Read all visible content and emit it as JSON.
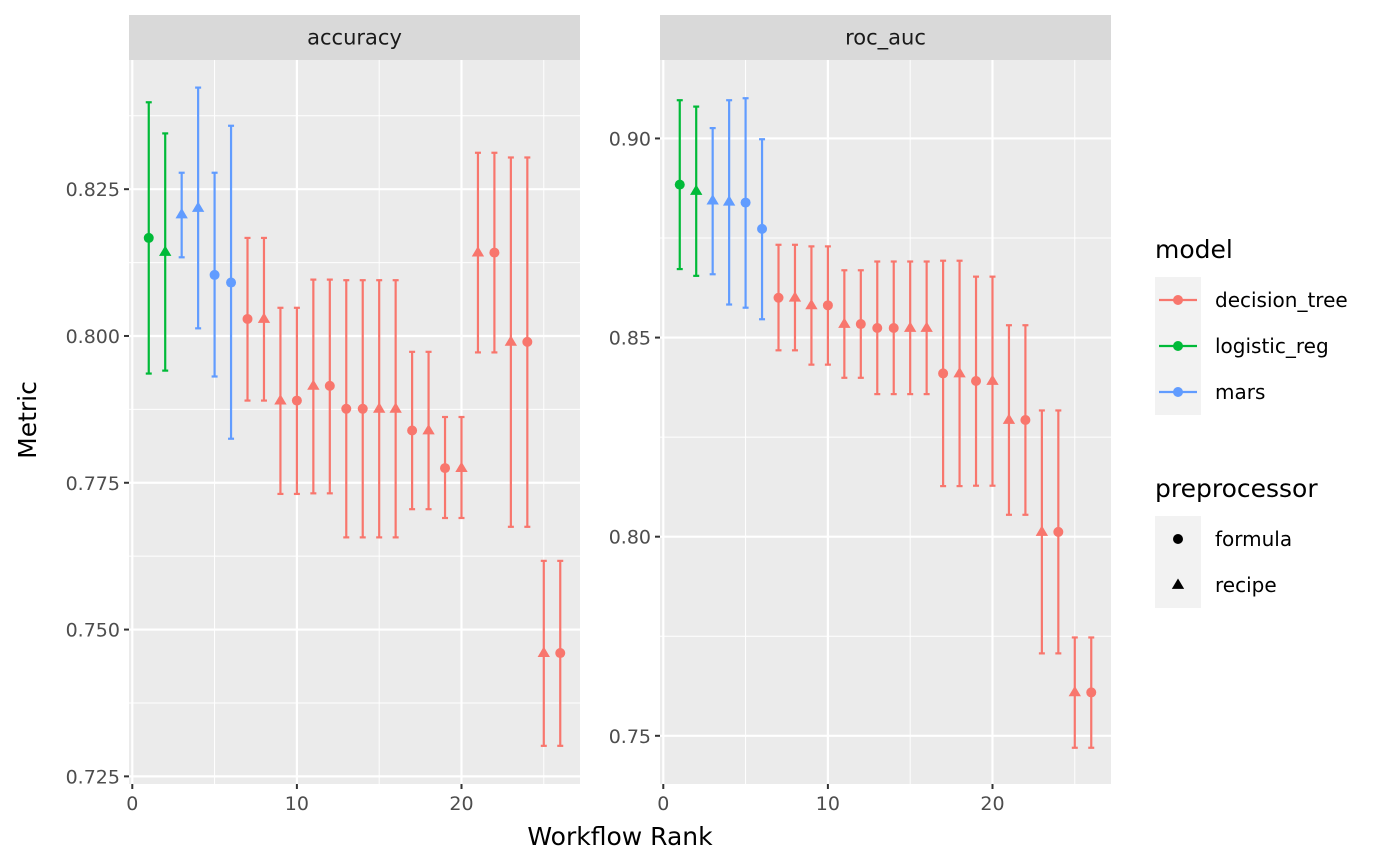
{
  "chart_data": {
    "type": "scatter",
    "subtype": "point-range with error bars, faceted",
    "xlabel": "Workflow Rank",
    "ylabel": "Metric",
    "grid": true,
    "legend_position": "right",
    "colors": {
      "decision_tree": "#F8766D",
      "logistic_reg": "#00BA38",
      "mars": "#619CFF"
    },
    "legends": [
      {
        "title": "model",
        "entries": [
          {
            "label": "decision_tree",
            "color": "#F8766D",
            "shape": "circle"
          },
          {
            "label": "logistic_reg",
            "color": "#00BA38",
            "shape": "circle"
          },
          {
            "label": "mars",
            "color": "#619CFF",
            "shape": "circle"
          }
        ]
      },
      {
        "title": "preprocessor",
        "entries": [
          {
            "label": "formula",
            "color": "#000000",
            "shape": "circle"
          },
          {
            "label": "recipe",
            "color": "#000000",
            "shape": "triangle"
          }
        ]
      }
    ],
    "panels": [
      {
        "strip": "accuracy",
        "xlim": [
          -0.2,
          27.2
        ],
        "ylim": [
          0.7237,
          0.847
        ],
        "x_ticks": [
          0,
          10,
          20
        ],
        "x_tick_labels": [
          "0",
          "10",
          "20"
        ],
        "y_ticks": [
          0.725,
          0.75,
          0.775,
          0.8,
          0.825
        ],
        "y_tick_labels": [
          "0.725",
          "0.750",
          "0.775",
          "0.800",
          "0.825"
        ],
        "y_minor": [
          0.7375,
          0.7625,
          0.7875,
          0.8125,
          0.8375
        ],
        "points": [
          {
            "rank": 1,
            "model": "logistic_reg",
            "preprocessor": "formula",
            "mean": 0.8167,
            "lower": 0.7936,
            "upper": 0.8398
          },
          {
            "rank": 2,
            "model": "logistic_reg",
            "preprocessor": "recipe",
            "mean": 0.8143,
            "lower": 0.7941,
            "upper": 0.8345
          },
          {
            "rank": 3,
            "model": "mars",
            "preprocessor": "recipe",
            "mean": 0.8207,
            "lower": 0.8134,
            "upper": 0.8278
          },
          {
            "rank": 4,
            "model": "mars",
            "preprocessor": "recipe",
            "mean": 0.8218,
            "lower": 0.8013,
            "upper": 0.8423
          },
          {
            "rank": 5,
            "model": "mars",
            "preprocessor": "formula",
            "mean": 0.8104,
            "lower": 0.7931,
            "upper": 0.8278
          },
          {
            "rank": 6,
            "model": "mars",
            "preprocessor": "formula",
            "mean": 0.8091,
            "lower": 0.7825,
            "upper": 0.8358
          },
          {
            "rank": 7,
            "model": "decision_tree",
            "preprocessor": "formula",
            "mean": 0.8029,
            "lower": 0.789,
            "upper": 0.8167
          },
          {
            "rank": 8,
            "model": "decision_tree",
            "preprocessor": "recipe",
            "mean": 0.8029,
            "lower": 0.789,
            "upper": 0.8167
          },
          {
            "rank": 9,
            "model": "decision_tree",
            "preprocessor": "recipe",
            "mean": 0.789,
            "lower": 0.7731,
            "upper": 0.8048
          },
          {
            "rank": 10,
            "model": "decision_tree",
            "preprocessor": "formula",
            "mean": 0.789,
            "lower": 0.7731,
            "upper": 0.8048
          },
          {
            "rank": 11,
            "model": "decision_tree",
            "preprocessor": "recipe",
            "mean": 0.7915,
            "lower": 0.7732,
            "upper": 0.8096
          },
          {
            "rank": 12,
            "model": "decision_tree",
            "preprocessor": "formula",
            "mean": 0.7915,
            "lower": 0.7732,
            "upper": 0.8096
          },
          {
            "rank": 13,
            "model": "decision_tree",
            "preprocessor": "formula",
            "mean": 0.7876,
            "lower": 0.7657,
            "upper": 0.8095
          },
          {
            "rank": 14,
            "model": "decision_tree",
            "preprocessor": "formula",
            "mean": 0.7876,
            "lower": 0.7657,
            "upper": 0.8095
          },
          {
            "rank": 15,
            "model": "decision_tree",
            "preprocessor": "recipe",
            "mean": 0.7876,
            "lower": 0.7657,
            "upper": 0.8095
          },
          {
            "rank": 16,
            "model": "decision_tree",
            "preprocessor": "recipe",
            "mean": 0.7876,
            "lower": 0.7657,
            "upper": 0.8095
          },
          {
            "rank": 17,
            "model": "decision_tree",
            "preprocessor": "formula",
            "mean": 0.7839,
            "lower": 0.7705,
            "upper": 0.7973
          },
          {
            "rank": 18,
            "model": "decision_tree",
            "preprocessor": "recipe",
            "mean": 0.7839,
            "lower": 0.7705,
            "upper": 0.7973
          },
          {
            "rank": 19,
            "model": "decision_tree",
            "preprocessor": "formula",
            "mean": 0.7775,
            "lower": 0.769,
            "upper": 0.7862
          },
          {
            "rank": 20,
            "model": "decision_tree",
            "preprocessor": "recipe",
            "mean": 0.7775,
            "lower": 0.769,
            "upper": 0.7862
          },
          {
            "rank": 21,
            "model": "decision_tree",
            "preprocessor": "recipe",
            "mean": 0.8142,
            "lower": 0.7972,
            "upper": 0.8312
          },
          {
            "rank": 22,
            "model": "decision_tree",
            "preprocessor": "formula",
            "mean": 0.8142,
            "lower": 0.7972,
            "upper": 0.8312
          },
          {
            "rank": 23,
            "model": "decision_tree",
            "preprocessor": "recipe",
            "mean": 0.799,
            "lower": 0.7675,
            "upper": 0.8304
          },
          {
            "rank": 24,
            "model": "decision_tree",
            "preprocessor": "formula",
            "mean": 0.799,
            "lower": 0.7675,
            "upper": 0.8304
          },
          {
            "rank": 25,
            "model": "decision_tree",
            "preprocessor": "recipe",
            "mean": 0.746,
            "lower": 0.7302,
            "upper": 0.7617
          },
          {
            "rank": 26,
            "model": "decision_tree",
            "preprocessor": "formula",
            "mean": 0.746,
            "lower": 0.7302,
            "upper": 0.7617
          }
        ]
      },
      {
        "strip": "roc_auc",
        "xlim": [
          -0.2,
          27.2
        ],
        "ylim": [
          0.7379,
          0.9197
        ],
        "x_ticks": [
          0,
          10,
          20
        ],
        "x_tick_labels": [
          "0",
          "10",
          "20"
        ],
        "y_ticks": [
          0.75,
          0.8,
          0.85,
          0.9
        ],
        "y_tick_labels": [
          "0.75",
          "0.80",
          "0.85",
          "0.90"
        ],
        "y_minor": [
          0.775,
          0.825,
          0.875
        ],
        "points": [
          {
            "rank": 1,
            "model": "logistic_reg",
            "preprocessor": "formula",
            "mean": 0.8884,
            "lower": 0.8672,
            "upper": 0.9096
          },
          {
            "rank": 2,
            "model": "logistic_reg",
            "preprocessor": "recipe",
            "mean": 0.8868,
            "lower": 0.8655,
            "upper": 0.908
          },
          {
            "rank": 3,
            "model": "mars",
            "preprocessor": "recipe",
            "mean": 0.8844,
            "lower": 0.8659,
            "upper": 0.9026
          },
          {
            "rank": 4,
            "model": "mars",
            "preprocessor": "recipe",
            "mean": 0.8841,
            "lower": 0.8583,
            "upper": 0.9096
          },
          {
            "rank": 5,
            "model": "mars",
            "preprocessor": "formula",
            "mean": 0.8839,
            "lower": 0.8575,
            "upper": 0.9101
          },
          {
            "rank": 6,
            "model": "mars",
            "preprocessor": "formula",
            "mean": 0.8773,
            "lower": 0.8546,
            "upper": 0.8998
          },
          {
            "rank": 7,
            "model": "decision_tree",
            "preprocessor": "formula",
            "mean": 0.86,
            "lower": 0.8468,
            "upper": 0.8733
          },
          {
            "rank": 8,
            "model": "decision_tree",
            "preprocessor": "recipe",
            "mean": 0.86,
            "lower": 0.8468,
            "upper": 0.8733
          },
          {
            "rank": 9,
            "model": "decision_tree",
            "preprocessor": "recipe",
            "mean": 0.8581,
            "lower": 0.8432,
            "upper": 0.8729
          },
          {
            "rank": 10,
            "model": "decision_tree",
            "preprocessor": "formula",
            "mean": 0.8581,
            "lower": 0.8432,
            "upper": 0.8729
          },
          {
            "rank": 11,
            "model": "decision_tree",
            "preprocessor": "recipe",
            "mean": 0.8534,
            "lower": 0.8399,
            "upper": 0.8669
          },
          {
            "rank": 12,
            "model": "decision_tree",
            "preprocessor": "formula",
            "mean": 0.8534,
            "lower": 0.8399,
            "upper": 0.8669
          },
          {
            "rank": 13,
            "model": "decision_tree",
            "preprocessor": "formula",
            "mean": 0.8524,
            "lower": 0.8358,
            "upper": 0.8691
          },
          {
            "rank": 14,
            "model": "decision_tree",
            "preprocessor": "formula",
            "mean": 0.8524,
            "lower": 0.8358,
            "upper": 0.8691
          },
          {
            "rank": 15,
            "model": "decision_tree",
            "preprocessor": "recipe",
            "mean": 0.8524,
            "lower": 0.8358,
            "upper": 0.8691
          },
          {
            "rank": 16,
            "model": "decision_tree",
            "preprocessor": "recipe",
            "mean": 0.8524,
            "lower": 0.8358,
            "upper": 0.8691
          },
          {
            "rank": 17,
            "model": "decision_tree",
            "preprocessor": "formula",
            "mean": 0.841,
            "lower": 0.8127,
            "upper": 0.8693
          },
          {
            "rank": 18,
            "model": "decision_tree",
            "preprocessor": "recipe",
            "mean": 0.841,
            "lower": 0.8127,
            "upper": 0.8693
          },
          {
            "rank": 19,
            "model": "decision_tree",
            "preprocessor": "formula",
            "mean": 0.8391,
            "lower": 0.8128,
            "upper": 0.8653
          },
          {
            "rank": 20,
            "model": "decision_tree",
            "preprocessor": "recipe",
            "mean": 0.8391,
            "lower": 0.8128,
            "upper": 0.8653
          },
          {
            "rank": 21,
            "model": "decision_tree",
            "preprocessor": "recipe",
            "mean": 0.8293,
            "lower": 0.8055,
            "upper": 0.8531
          },
          {
            "rank": 22,
            "model": "decision_tree",
            "preprocessor": "formula",
            "mean": 0.8293,
            "lower": 0.8055,
            "upper": 0.8531
          },
          {
            "rank": 23,
            "model": "decision_tree",
            "preprocessor": "recipe",
            "mean": 0.8012,
            "lower": 0.7707,
            "upper": 0.8317
          },
          {
            "rank": 24,
            "model": "decision_tree",
            "preprocessor": "formula",
            "mean": 0.8012,
            "lower": 0.7707,
            "upper": 0.8317
          },
          {
            "rank": 25,
            "model": "decision_tree",
            "preprocessor": "recipe",
            "mean": 0.7609,
            "lower": 0.747,
            "upper": 0.7747
          },
          {
            "rank": 26,
            "model": "decision_tree",
            "preprocessor": "formula",
            "mean": 0.7609,
            "lower": 0.747,
            "upper": 0.7747
          }
        ]
      }
    ]
  }
}
